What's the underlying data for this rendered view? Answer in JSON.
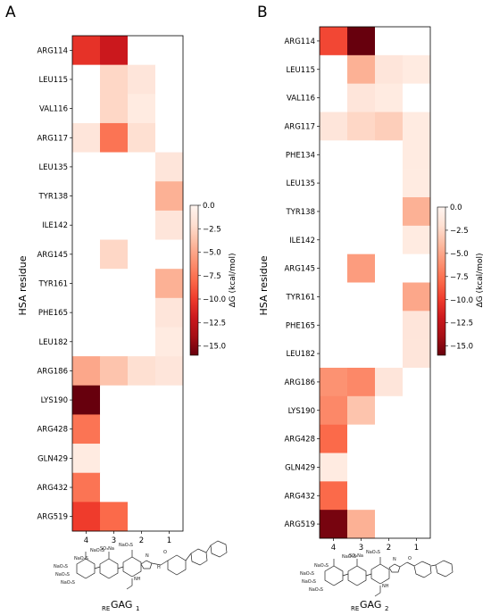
{
  "chart_data": [
    {
      "type": "heatmap",
      "panel_label": "A",
      "ylabel": "HSA residue",
      "categories_y": [
        "ARG114",
        "LEU115",
        "VAL116",
        "ARG117",
        "LEU135",
        "TYR138",
        "ILE142",
        "ARG145",
        "TYR161",
        "PHE165",
        "LEU182",
        "ARG186",
        "LYS190",
        "ARG428",
        "GLN429",
        "ARG432",
        "ARG519"
      ],
      "categories_x": [
        "4",
        "3",
        "2",
        "1"
      ],
      "values": [
        [
          -10.5,
          -12.0,
          0,
          0
        ],
        [
          0,
          -2.5,
          -1.5,
          0
        ],
        [
          0,
          -2.5,
          -1.0,
          0
        ],
        [
          -1.5,
          -7.5,
          -2.0,
          0
        ],
        [
          0,
          0,
          0,
          -1.5
        ],
        [
          0,
          0,
          0,
          -4.5
        ],
        [
          0,
          0,
          0,
          -1.5
        ],
        [
          0,
          -2.5,
          0,
          0
        ],
        [
          0,
          0,
          0,
          -4.5
        ],
        [
          0,
          0,
          0,
          -1.5
        ],
        [
          0,
          0,
          0,
          -1.0
        ],
        [
          -5.0,
          -3.5,
          -2.0,
          -1.5
        ],
        [
          -16.0,
          0,
          0,
          0
        ],
        [
          -7.5,
          0,
          0,
          0
        ],
        [
          -1.0,
          0,
          0,
          0
        ],
        [
          -7.5,
          0,
          0,
          0
        ],
        [
          -10.0,
          -8.0,
          0,
          0
        ]
      ],
      "colorbar": {
        "label": "ΔG (kcal/mol)",
        "range": [
          -16,
          0
        ],
        "ticks": [
          "0.0",
          "−2.5",
          "−5.0",
          "−7.5",
          "−10.0",
          "−12.5",
          "−15.0"
        ],
        "tick_values": [
          0,
          -2.5,
          -5,
          -7.5,
          -10,
          -12.5,
          -15
        ]
      },
      "compound_label": {
        "prefix": "RE",
        "name": "GAG",
        "subscript": "1"
      }
    },
    {
      "type": "heatmap",
      "panel_label": "B",
      "ylabel": "HSA residue",
      "categories_y": [
        "ARG114",
        "LEU115",
        "VAL116",
        "ARG117",
        "PHE134",
        "LEU135",
        "TYR138",
        "ILE142",
        "ARG145",
        "TYR161",
        "PHE165",
        "LEU182",
        "ARG186",
        "LYS190",
        "ARG428",
        "GLN429",
        "ARG432",
        "ARG519"
      ],
      "categories_x": [
        "4",
        "3",
        "2",
        "1"
      ],
      "values": [
        [
          -9.5,
          -16.0,
          0,
          0
        ],
        [
          0,
          -4.5,
          -1.5,
          -1.0
        ],
        [
          0,
          -1.5,
          -1.0,
          0
        ],
        [
          -1.5,
          -2.5,
          -3.0,
          -1.0
        ],
        [
          0,
          0,
          0,
          -1.0
        ],
        [
          0,
          0,
          0,
          -1.0
        ],
        [
          0,
          0,
          0,
          -4.5
        ],
        [
          0,
          0,
          0,
          -1.0
        ],
        [
          0,
          -5.5,
          0,
          0
        ],
        [
          0,
          0,
          0,
          -5.0
        ],
        [
          0,
          0,
          0,
          -1.5
        ],
        [
          0,
          0,
          0,
          -1.5
        ],
        [
          -6.0,
          -6.5,
          -1.5,
          0
        ],
        [
          -6.5,
          -3.5,
          0,
          0
        ],
        [
          -8.0,
          0,
          0,
          0
        ],
        [
          -1.0,
          0,
          0,
          0
        ],
        [
          -8.0,
          0,
          0,
          0
        ],
        [
          -15.5,
          -4.5,
          0,
          0
        ]
      ],
      "colorbar": {
        "label": "ΔG (kcal/mol)",
        "range": [
          -16,
          0
        ],
        "ticks": [
          "0.0",
          "−2.5",
          "−5.0",
          "−7.5",
          "−10.0",
          "−12.5",
          "−15.0"
        ],
        "tick_values": [
          0,
          -2.5,
          -5,
          -7.5,
          -10,
          -12.5,
          -15
        ]
      },
      "compound_label": {
        "prefix": "RE",
        "name": "GAG",
        "subscript": "2"
      }
    }
  ],
  "chem_labels": {
    "naso3_o": "NaO₃S",
    "nao3s": "NaO₃S",
    "so3na": "SO₃Na",
    "nh": "NH",
    "n": "N",
    "o": "O",
    "h": "H"
  }
}
